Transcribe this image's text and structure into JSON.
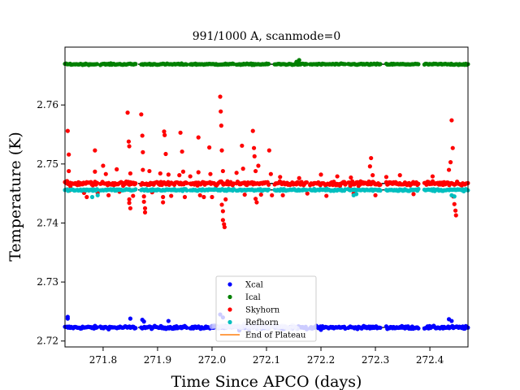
{
  "chart_data": {
    "type": "scatter",
    "title": "991/1000 A, scanmode=0",
    "xlabel": "Time Since APCO (days)",
    "ylabel": "Temperature (K)",
    "xlim": [
      271.73,
      272.47
    ],
    "ylim": [
      2.719,
      2.7698
    ],
    "xticks": [
      271.8,
      271.9,
      272.0,
      272.1,
      272.2,
      272.3,
      272.4
    ],
    "xtick_labels": [
      "271.8",
      "271.9",
      "272.0",
      "272.1",
      "272.2",
      "272.3",
      "272.4"
    ],
    "yticks": [
      2.72,
      2.73,
      2.74,
      2.75,
      2.76
    ],
    "ytick_labels": [
      "2.72",
      "2.73",
      "2.74",
      "2.75",
      "2.76"
    ],
    "legend_position": "lower center",
    "series": [
      {
        "name": "Xcal",
        "color": "#0000ff",
        "level": 2.7223,
        "spread": 0.00025,
        "outliers": [
          [
            271.735,
            2.7241
          ],
          [
            271.735,
            2.7238
          ],
          [
            271.85,
            2.7238
          ],
          [
            271.872,
            2.7236
          ],
          [
            271.875,
            2.7233
          ],
          [
            271.92,
            2.7234
          ],
          [
            272.015,
            2.7245
          ],
          [
            272.02,
            2.724
          ],
          [
            272.435,
            2.7237
          ],
          [
            272.44,
            2.7234
          ],
          [
            272.05,
            2.7218
          ],
          [
            272.2,
            2.7219
          ]
        ]
      },
      {
        "name": "Ical",
        "color": "#008000",
        "level": 2.7669,
        "spread": 0.00012,
        "outliers": [
          [
            272.16,
            2.7676
          ],
          [
            272.155,
            2.7673
          ]
        ]
      },
      {
        "name": "Skyhorn",
        "color": "#ff0000",
        "level": 2.7467,
        "spread": 0.00035,
        "outliers": [
          [
            271.735,
            2.7556
          ],
          [
            271.737,
            2.7516
          ],
          [
            271.737,
            2.7488
          ],
          [
            271.738,
            2.7455
          ],
          [
            271.74,
            2.7462
          ],
          [
            271.765,
            2.7451
          ],
          [
            271.77,
            2.7444
          ],
          [
            271.785,
            2.7523
          ],
          [
            271.785,
            2.7487
          ],
          [
            271.79,
            2.7451
          ],
          [
            271.8,
            2.7497
          ],
          [
            271.805,
            2.7483
          ],
          [
            271.81,
            2.7447
          ],
          [
            271.825,
            2.7491
          ],
          [
            271.83,
            2.7453
          ],
          [
            271.845,
            2.7587
          ],
          [
            271.847,
            2.7538
          ],
          [
            271.848,
            2.753
          ],
          [
            271.85,
            2.7484
          ],
          [
            271.848,
            2.744
          ],
          [
            271.848,
            2.7434
          ],
          [
            271.85,
            2.7425
          ],
          [
            271.855,
            2.7446
          ],
          [
            271.87,
            2.7584
          ],
          [
            271.872,
            2.7548
          ],
          [
            271.873,
            2.752
          ],
          [
            271.873,
            2.749
          ],
          [
            271.875,
            2.7445
          ],
          [
            271.875,
            2.7436
          ],
          [
            271.877,
            2.7425
          ],
          [
            271.877,
            2.7418
          ],
          [
            271.885,
            2.7488
          ],
          [
            271.89,
            2.7452
          ],
          [
            271.905,
            2.7484
          ],
          [
            271.91,
            2.7444
          ],
          [
            271.91,
            2.7435
          ],
          [
            271.912,
            2.7555
          ],
          [
            271.913,
            2.7549
          ],
          [
            271.915,
            2.7517
          ],
          [
            271.92,
            2.7482
          ],
          [
            271.925,
            2.7446
          ],
          [
            271.94,
            2.7481
          ],
          [
            271.942,
            2.7553
          ],
          [
            271.945,
            2.7521
          ],
          [
            271.947,
            2.7487
          ],
          [
            271.95,
            2.7444
          ],
          [
            271.96,
            2.7479
          ],
          [
            271.975,
            2.7545
          ],
          [
            271.975,
            2.7486
          ],
          [
            271.978,
            2.7447
          ],
          [
            271.985,
            2.7444
          ],
          [
            271.995,
            2.7528
          ],
          [
            271.997,
            2.7483
          ],
          [
            272.0,
            2.7444
          ],
          [
            272.015,
            2.7614
          ],
          [
            272.016,
            2.7589
          ],
          [
            272.017,
            2.7565
          ],
          [
            272.018,
            2.7523
          ],
          [
            272.02,
            2.7488
          ],
          [
            272.018,
            2.7431
          ],
          [
            272.02,
            2.742
          ],
          [
            272.02,
            2.7405
          ],
          [
            272.022,
            2.7398
          ],
          [
            272.023,
            2.7393
          ],
          [
            272.025,
            2.744
          ],
          [
            272.045,
            2.7485
          ],
          [
            272.055,
            2.7531
          ],
          [
            272.057,
            2.7492
          ],
          [
            272.06,
            2.7448
          ],
          [
            272.075,
            2.7556
          ],
          [
            272.077,
            2.7527
          ],
          [
            272.078,
            2.7513
          ],
          [
            272.08,
            2.7488
          ],
          [
            272.08,
            2.7441
          ],
          [
            272.082,
            2.7435
          ],
          [
            272.085,
            2.7497
          ],
          [
            272.09,
            2.7448
          ],
          [
            272.105,
            2.7523
          ],
          [
            272.108,
            2.7483
          ],
          [
            272.11,
            2.7447
          ],
          [
            272.125,
            2.7478
          ],
          [
            272.13,
            2.7447
          ],
          [
            272.16,
            2.7476
          ],
          [
            272.175,
            2.745
          ],
          [
            272.2,
            2.7482
          ],
          [
            272.21,
            2.7446
          ],
          [
            272.23,
            2.7479
          ],
          [
            272.255,
            2.7477
          ],
          [
            272.26,
            2.745
          ],
          [
            272.29,
            2.7496
          ],
          [
            272.292,
            2.751
          ],
          [
            272.295,
            2.7481
          ],
          [
            272.3,
            2.7447
          ],
          [
            272.32,
            2.7478
          ],
          [
            272.345,
            2.7481
          ],
          [
            272.37,
            2.7449
          ],
          [
            272.405,
            2.7479
          ],
          [
            272.435,
            2.749
          ],
          [
            272.438,
            2.7503
          ],
          [
            272.44,
            2.7574
          ],
          [
            272.442,
            2.7527
          ],
          [
            272.443,
            2.7445
          ],
          [
            272.445,
            2.7432
          ],
          [
            272.447,
            2.7421
          ],
          [
            272.448,
            2.7413
          ],
          [
            272.45,
            2.747
          ]
        ]
      },
      {
        "name": "Refhorn",
        "color": "#00bfbf",
        "level": 2.7456,
        "spread": 0.00018,
        "outliers": [
          [
            271.78,
            2.7444
          ],
          [
            271.79,
            2.7447
          ],
          [
            272.26,
            2.7447
          ],
          [
            272.265,
            2.7449
          ],
          [
            272.44,
            2.7447
          ],
          [
            272.445,
            2.7445
          ]
        ]
      },
      {
        "name": "End of Plateau",
        "color": "#ff7f0e",
        "kind": "line"
      }
    ],
    "segments": [
      [
        271.73,
        271.79
      ],
      [
        271.795,
        271.86
      ],
      [
        271.87,
        271.955
      ],
      [
        271.96,
        272.04
      ],
      [
        272.045,
        272.105
      ],
      [
        272.115,
        272.175
      ],
      [
        272.18,
        272.245
      ],
      [
        272.25,
        272.31
      ],
      [
        272.32,
        272.38
      ],
      [
        272.39,
        272.47
      ]
    ]
  }
}
